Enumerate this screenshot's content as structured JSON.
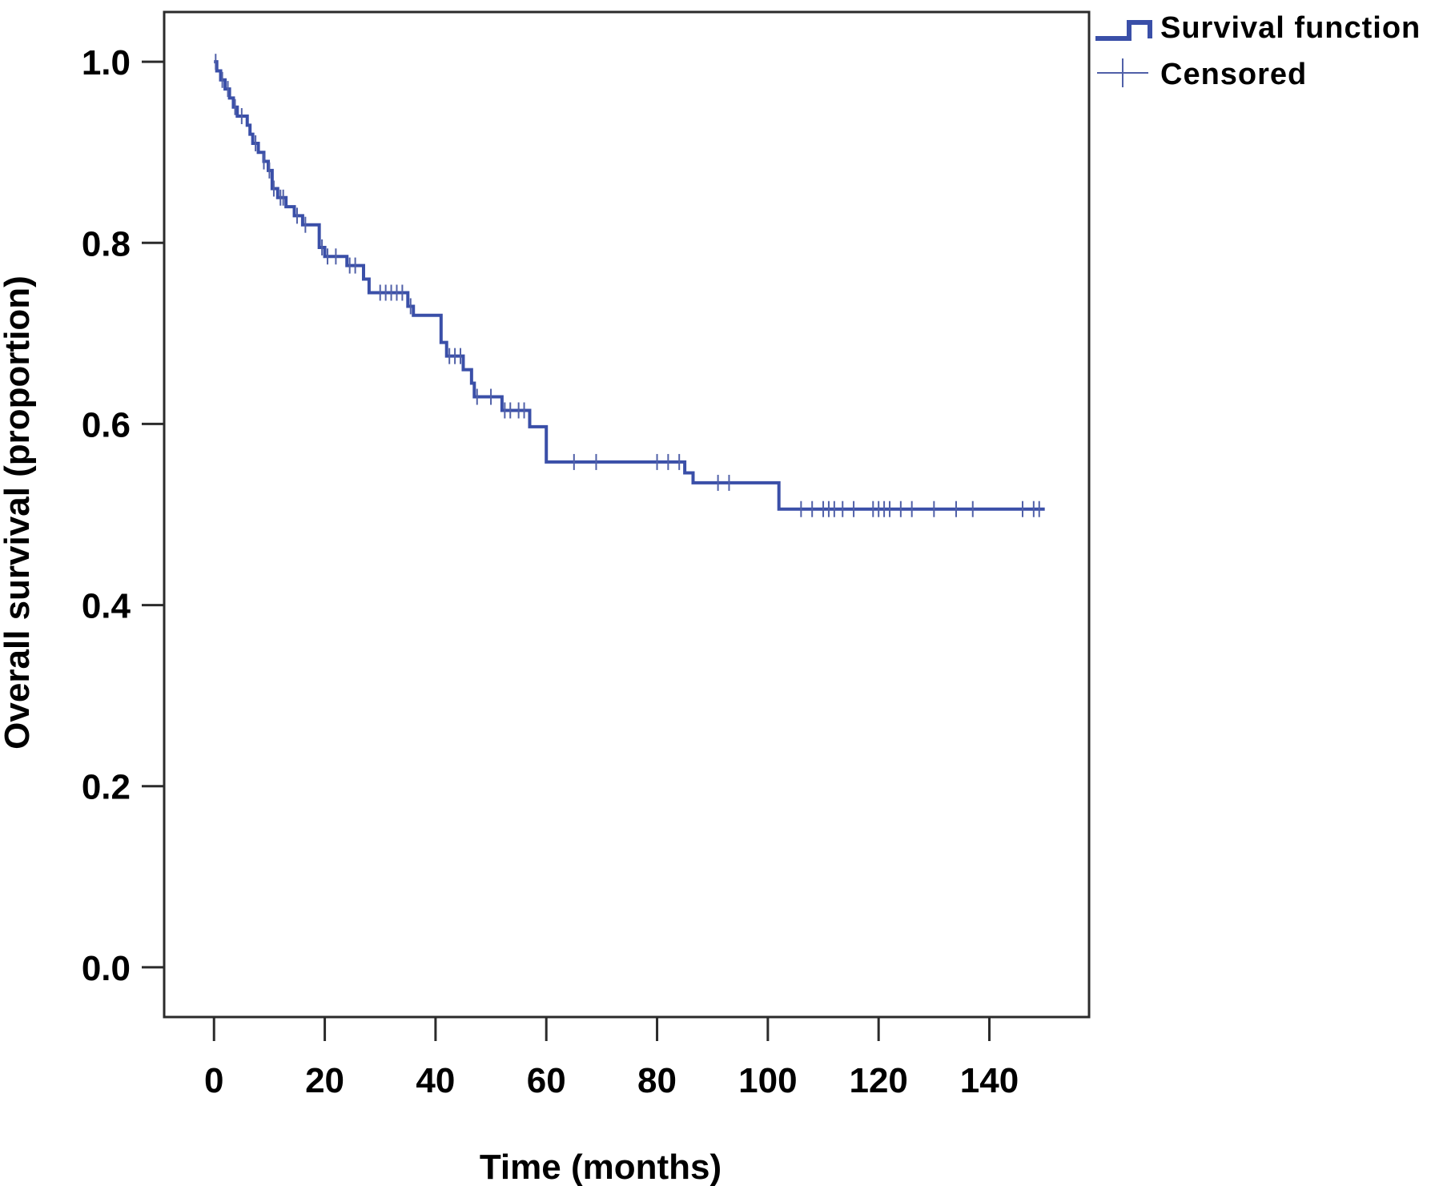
{
  "chart_data": {
    "type": "line",
    "subtype": "kaplan-meier",
    "xlabel": "Time (months)",
    "ylabel": "Overall survival (proportion)",
    "xlim": [
      -9,
      158
    ],
    "ylim": [
      -0.055,
      1.055
    ],
    "xticks": [
      0,
      20,
      40,
      60,
      80,
      100,
      120,
      140
    ],
    "yticks": [
      0.0,
      0.2,
      0.4,
      0.6,
      0.8,
      1.0
    ],
    "xtick_labels": [
      "0",
      "20",
      "40",
      "60",
      "80",
      "100",
      "120",
      "140"
    ],
    "ytick_labels": [
      "0.0",
      "0.2",
      "0.4",
      "0.6",
      "0.8",
      "1.0"
    ],
    "grid": false,
    "legend": {
      "position": "top-right",
      "entries": [
        {
          "label": "Survival function",
          "marker": "step-line"
        },
        {
          "label": "Censored",
          "marker": "plus"
        }
      ]
    },
    "series": [
      {
        "name": "Survival function",
        "color": "#3a4fa8",
        "steps": [
          [
            0,
            1.0
          ],
          [
            0.5,
            0.99
          ],
          [
            1.2,
            0.98
          ],
          [
            2.0,
            0.97
          ],
          [
            2.8,
            0.96
          ],
          [
            3.5,
            0.95
          ],
          [
            4.2,
            0.94
          ],
          [
            6.0,
            0.93
          ],
          [
            6.5,
            0.92
          ],
          [
            7.0,
            0.91
          ],
          [
            8.0,
            0.9
          ],
          [
            9.0,
            0.89
          ],
          [
            9.8,
            0.88
          ],
          [
            10.5,
            0.86
          ],
          [
            11.5,
            0.85
          ],
          [
            13.0,
            0.84
          ],
          [
            14.5,
            0.83
          ],
          [
            16.0,
            0.82
          ],
          [
            19.0,
            0.795
          ],
          [
            20.0,
            0.785
          ],
          [
            24.0,
            0.775
          ],
          [
            27.0,
            0.76
          ],
          [
            28.0,
            0.745
          ],
          [
            35.0,
            0.73
          ],
          [
            36.0,
            0.72
          ],
          [
            41.0,
            0.69
          ],
          [
            42.0,
            0.675
          ],
          [
            45.0,
            0.66
          ],
          [
            46.5,
            0.645
          ],
          [
            47.0,
            0.63
          ],
          [
            52.0,
            0.615
          ],
          [
            57.0,
            0.597
          ],
          [
            60.0,
            0.558
          ],
          [
            85.0,
            0.546
          ],
          [
            86.5,
            0.535
          ],
          [
            102.0,
            0.506
          ],
          [
            150.0,
            0.506
          ]
        ],
        "censored": [
          0.3,
          1.5,
          2.5,
          3.8,
          5.0,
          7.5,
          9.0,
          10.0,
          10.8,
          12.0,
          12.5,
          15.0,
          16.5,
          19.5,
          20.5,
          22.0,
          24.5,
          25.5,
          30.0,
          31.0,
          32.0,
          33.0,
          34.0,
          35.5,
          42.5,
          43.5,
          44.5,
          47.5,
          50.0,
          52.5,
          53.5,
          55.0,
          56.0,
          65.0,
          69.0,
          80.0,
          82.0,
          84.0,
          91.0,
          93.0,
          106.0,
          108.0,
          110.0,
          111.0,
          112.0,
          113.5,
          115.5,
          119.0,
          120.0,
          121.0,
          122.0,
          124.0,
          126.0,
          130.0,
          134.0,
          137.0,
          146.0,
          148.0,
          149.0
        ]
      }
    ]
  }
}
